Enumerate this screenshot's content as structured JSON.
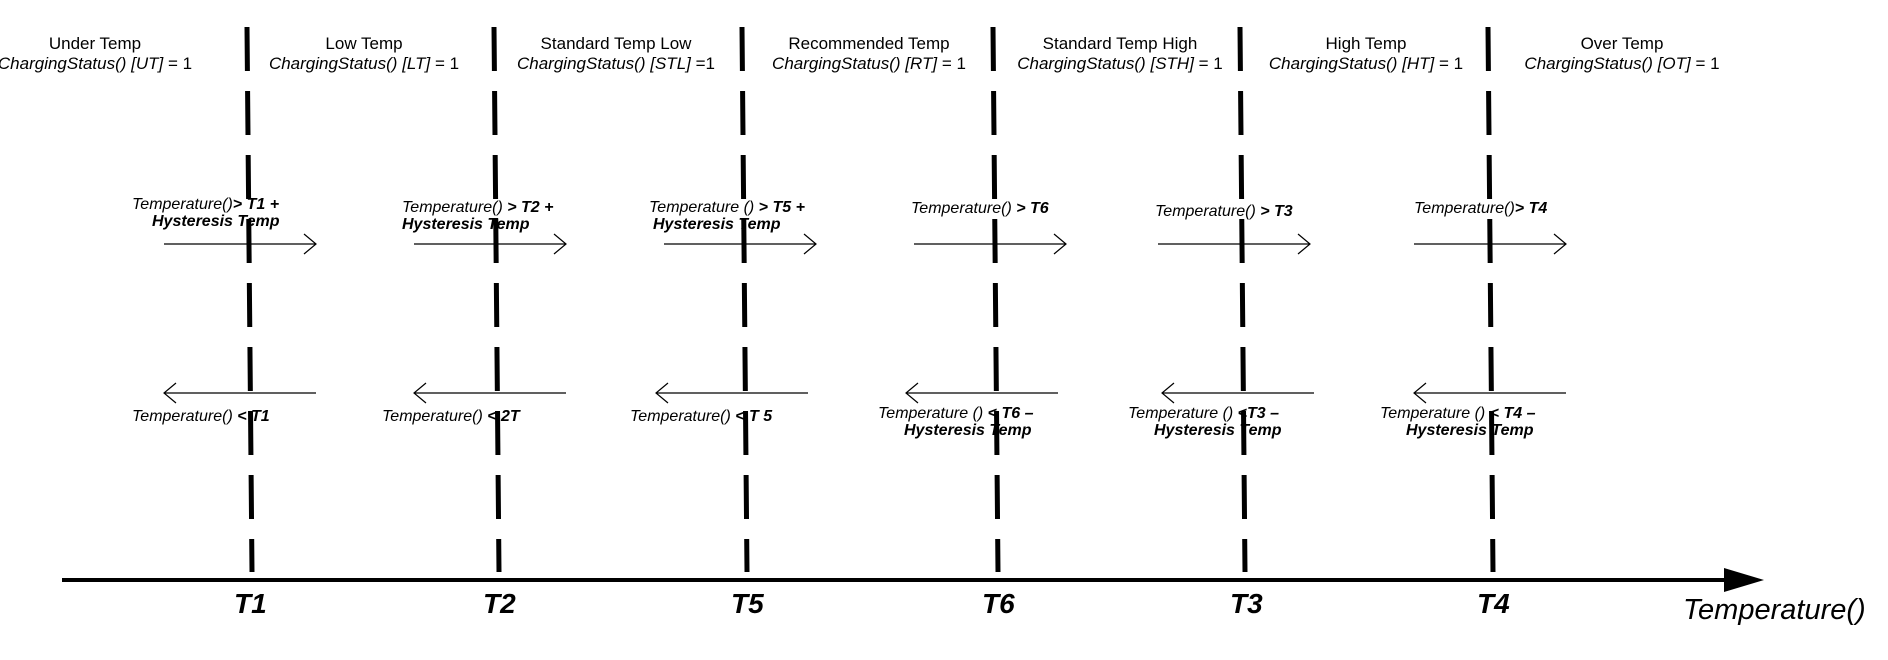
{
  "zones": [
    {
      "name": "Under Temp",
      "fn": "ChargingStatus()",
      "flag": "[UT]",
      "eq": "= 1"
    },
    {
      "name": "Low Temp",
      "fn": "ChargingStatus()",
      "flag": "[LT]",
      "eq": "= 1"
    },
    {
      "name": "Standard Temp Low",
      "fn": "ChargingStatus()",
      "flag": "[STL]",
      "eq": "=1"
    },
    {
      "name": "Recommended Temp",
      "fn": "ChargingStatus()",
      "flag": "[RT]",
      "eq": "= 1"
    },
    {
      "name": "Standard Temp High",
      "fn": "ChargingStatus()",
      "flag": "[STH]",
      "eq": "= 1"
    },
    {
      "name": "High Temp",
      "fn": "ChargingStatus()",
      "flag": "[HT]",
      "eq": "= 1"
    },
    {
      "name": "Over Temp",
      "fn": "ChargingStatus()",
      "flag": "[OT]",
      "eq": "= 1"
    }
  ],
  "thresholds": [
    "T1",
    "T2",
    "T5",
    "T6",
    "T3",
    "T4"
  ],
  "up_rules": [
    {
      "prefix": "Temperature()",
      "op": "> ",
      "thr": "T1",
      "tail": " +",
      "hyst": "Hysteresis Temp"
    },
    {
      "prefix": "Temperature()",
      "op": " > ",
      "thr": "T2",
      "tail": " +",
      "hyst": "Hysteresis Temp"
    },
    {
      "prefix": "Temperature ()",
      "op": " > ",
      "thr": "T5",
      "tail": " +",
      "hyst": "Hysteresis Temp"
    },
    {
      "prefix": "Temperature()",
      "op": " > ",
      "thr": "T6",
      "tail": "",
      "hyst": ""
    },
    {
      "prefix": "Temperature()",
      "op": " > ",
      "thr": "T3",
      "tail": "",
      "hyst": ""
    },
    {
      "prefix": "Temperature()",
      "op": "> ",
      "thr": "T4",
      "tail": "",
      "hyst": ""
    }
  ],
  "down_rules": [
    {
      "prefix": "Temperature()",
      "op": " < ",
      "thr": "T1",
      "tail": "",
      "hyst": ""
    },
    {
      "prefix": "Temperature()",
      "op": " < ",
      "thr": "2T",
      "tail": "",
      "hyst": ""
    },
    {
      "prefix": "Temperature()",
      "op": " < ",
      "thr": "T 5",
      "tail": "",
      "hyst": ""
    },
    {
      "prefix": "Temperature ()",
      "op": " < ",
      "thr": "T6",
      "tail": " –",
      "hyst": "Hysteresis Temp"
    },
    {
      "prefix": "Temperature ()",
      "op": " <",
      "thr": "T3",
      "tail": " –",
      "hyst": "Hysteresis Temp"
    },
    {
      "prefix": "Temperature ()",
      "op": " < ",
      "thr": "T4",
      "tail": " –",
      "hyst": "Hysteresis Temp"
    }
  ],
  "axis_title": "Temperature()"
}
